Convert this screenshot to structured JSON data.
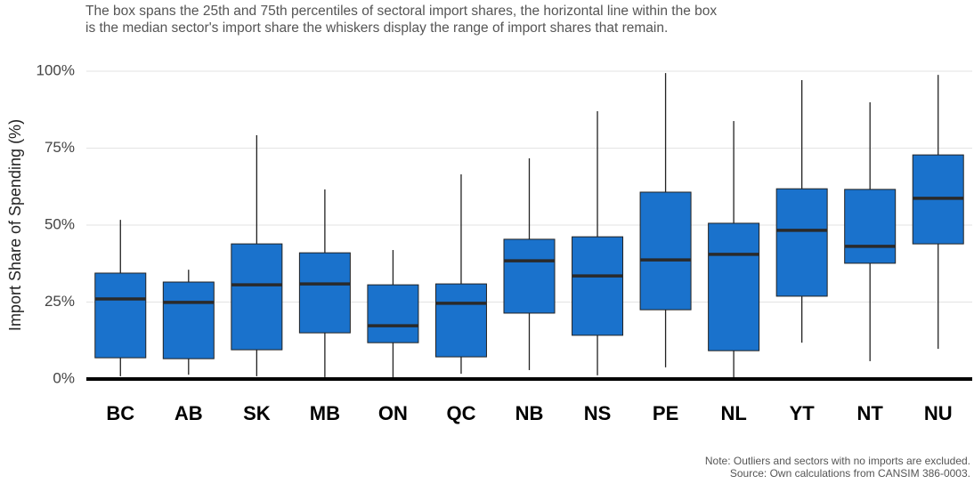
{
  "chart_data": {
    "type": "box",
    "subtitle": [
      "The box spans the 25th and 75th percentiles of sectoral import shares, the horizontal line within the box",
      "is the median sector's import share the whiskers display the range of import shares that remain."
    ],
    "y_label": "Import Share of Spending (%)",
    "notes": [
      "Note: Outliers and sectors with no imports are excluded.",
      "Source: Own calculations from CANSIM 386-0003."
    ],
    "categories": [
      "BC",
      "AB",
      "SK",
      "MB",
      "ON",
      "QC",
      "NB",
      "NS",
      "PE",
      "NL",
      "YT",
      "NT",
      "NU"
    ],
    "min": [
      0.9,
      1.4,
      0.9,
      0.6,
      0,
      1.7,
      2.9,
      1.2,
      3.8,
      0,
      11.8,
      5.8,
      9.8
    ],
    "q1": [
      6.9,
      6.6,
      9.5,
      15,
      11.8,
      7.2,
      21.4,
      14.2,
      22.5,
      9.2,
      26.9,
      37.6,
      43.9
    ],
    "median": [
      26,
      24.9,
      30.6,
      30.9,
      17.3,
      24.6,
      38.4,
      33.5,
      38.7,
      40.5,
      48.3,
      43.1,
      58.7
    ],
    "q3": [
      34.4,
      31.5,
      43.9,
      41,
      30.6,
      30.9,
      45.4,
      46.2,
      60.7,
      50.6,
      61.8,
      61.6,
      72.8
    ],
    "max": [
      51.7,
      35.5,
      79.2,
      61.6,
      41.9,
      66.5,
      71.7,
      87,
      99.4,
      83.8,
      97.1,
      89.9,
      98.8
    ],
    "color": "#1a72cc",
    "ylim": [
      0,
      100
    ],
    "yticks": [
      {
        "value": 0,
        "label": "0%"
      },
      {
        "value": 25,
        "label": "25%"
      },
      {
        "value": 50,
        "label": "50%"
      },
      {
        "value": 75,
        "label": "75%"
      },
      {
        "value": 100,
        "label": "100%"
      }
    ],
    "grid": true
  }
}
